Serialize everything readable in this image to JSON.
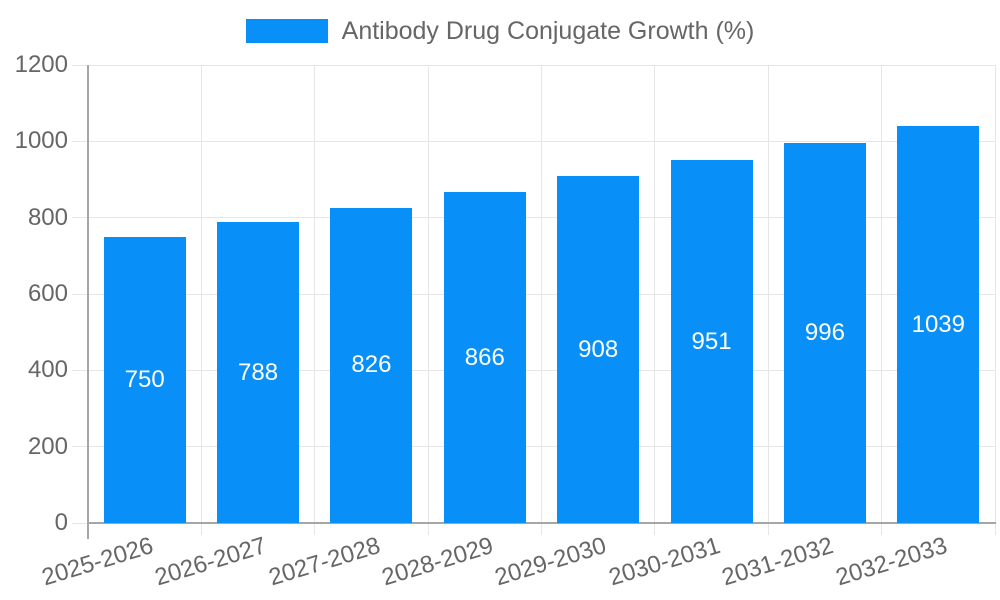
{
  "chart_data": {
    "type": "bar",
    "title": "Antibody Drug Conjugate Growth (%)",
    "categories": [
      "2025-2026",
      "2026-2027",
      "2027-2028",
      "2028-2029",
      "2029-2030",
      "2030-2031",
      "2031-2032",
      "2032-2033"
    ],
    "values": [
      750,
      788,
      826,
      866,
      908,
      951,
      996,
      1039
    ],
    "xlabel": "",
    "ylabel": "",
    "ylim": [
      0,
      1200
    ],
    "yticks": [
      0,
      200,
      400,
      600,
      800,
      1000,
      1200
    ],
    "grid": true,
    "legend_position": "top",
    "x_label_rotation": -17,
    "bar_color": "#0990f8",
    "value_label_color": "#ffffff",
    "axis_text_color": "#666666",
    "grid_color": "#e6e6e6",
    "axis_line_color": "#a6a6a6",
    "background_color": "#ffffff"
  }
}
